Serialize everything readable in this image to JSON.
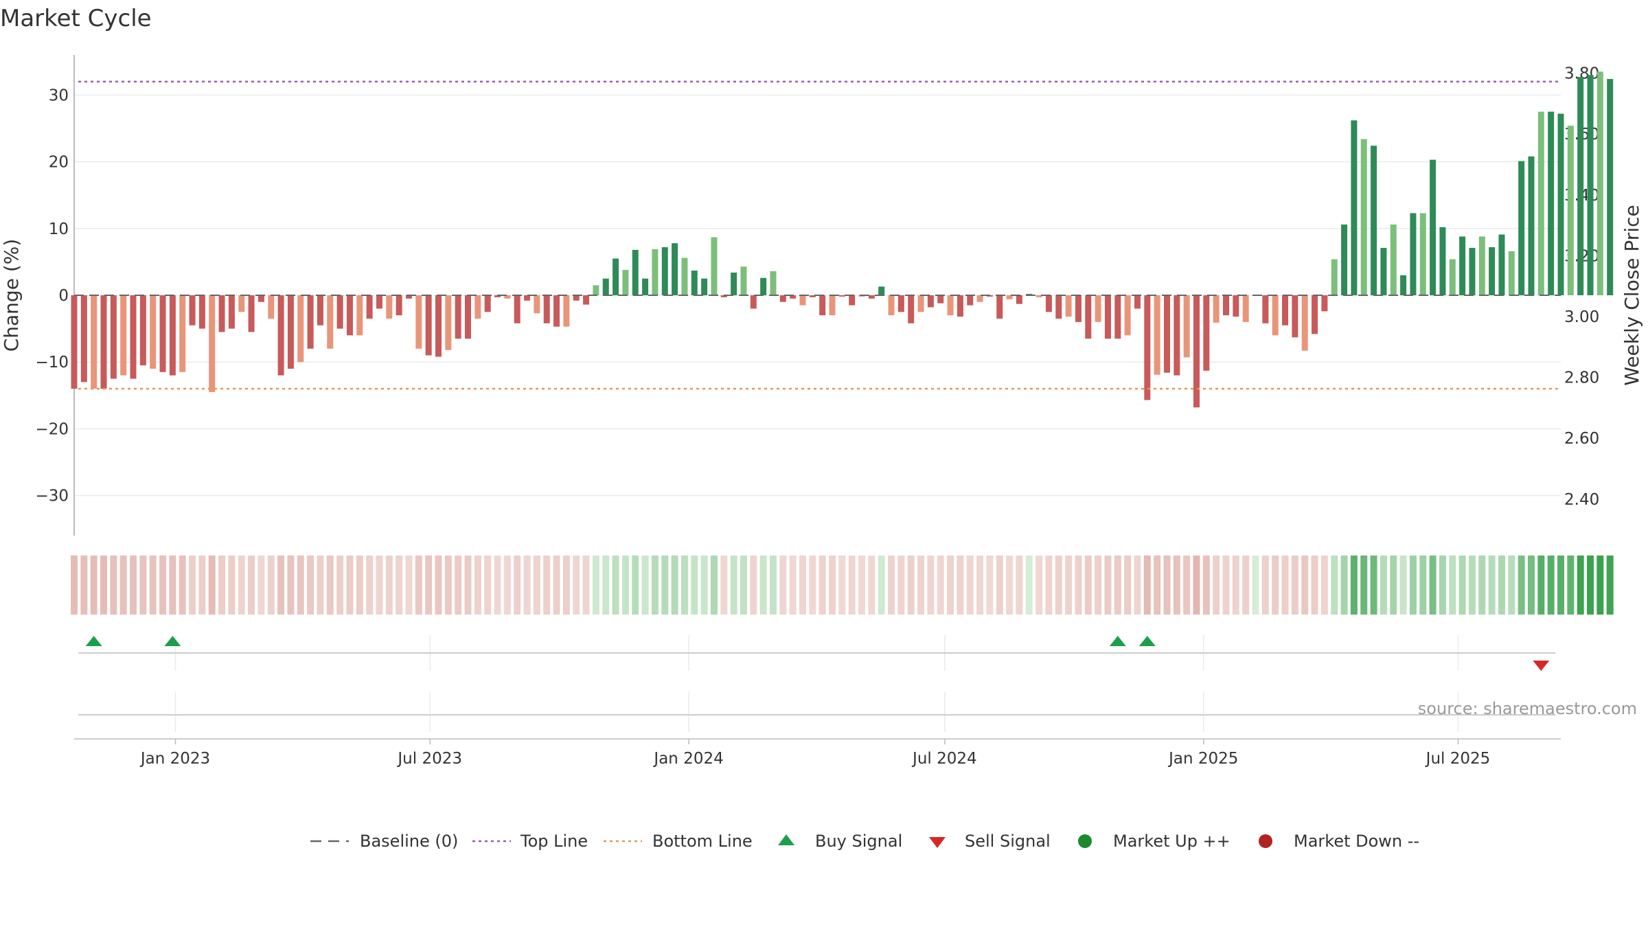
{
  "chart_data": {
    "type": "bar",
    "title": "Market Cycle",
    "ylabel": "Change (%)",
    "y2label": "Weekly Close Price",
    "ylim": [
      -36,
      36
    ],
    "y2lim": [
      2.28,
      3.86
    ],
    "yticks": [
      30,
      20,
      10,
      0,
      -10,
      -20,
      -30
    ],
    "ytick_labels": [
      "30",
      "20",
      "10",
      "0",
      "−10",
      "−20",
      "−30"
    ],
    "y2ticks": [
      3.8,
      3.6,
      3.4,
      3.2,
      3.0,
      2.8,
      2.6,
      2.4
    ],
    "y2tick_labels": [
      "3.80",
      "3.60",
      "3.40",
      "3.20",
      "3.00",
      "2.80",
      "2.60",
      "2.40"
    ],
    "top_line": 32,
    "bottom_line": -14,
    "x_start": "2022-10-21",
    "x_end": "2025-09-12",
    "date_ticks": [
      {
        "date": "2023-01-01",
        "label": "Jan 2023"
      },
      {
        "date": "2023-07-01",
        "label": "Jul 2023"
      },
      {
        "date": "2024-01-01",
        "label": "Jan 2024"
      },
      {
        "date": "2024-07-01",
        "label": "Jul 2024"
      },
      {
        "date": "2025-01-01",
        "label": "Jan 2025"
      },
      {
        "date": "2025-07-01",
        "label": "Jul 2025"
      }
    ],
    "weekly_change_start": "2022-10-21",
    "weekly_change": [
      -14,
      -13,
      -14,
      -14,
      -12.5,
      -12,
      -12.5,
      -10.5,
      -11,
      -11.5,
      -12,
      -11.5,
      -4.5,
      -5,
      -14.5,
      -5.5,
      -5,
      -2.5,
      -5.5,
      -1,
      -3.5,
      -12,
      -11,
      -10,
      -8,
      -4.5,
      -8,
      -5,
      -6,
      -6,
      -3.5,
      -2,
      -3.5,
      -3,
      -0.5,
      -8,
      -9,
      -9.2,
      -8.2,
      -6.5,
      -6.5,
      -3.5,
      -2.5,
      -0.3,
      -0.5,
      -4.2,
      -0.8,
      -2.7,
      -4.2,
      -4.7,
      -4.7,
      -0.8,
      -1.4,
      1.5,
      2.5,
      5.5,
      3.8,
      6.8,
      2.5,
      6.9,
      7.2,
      7.8,
      5.6,
      3.7,
      2.5,
      8.7,
      -0.3,
      3.4,
      4.3,
      -2,
      2.6,
      3.6,
      -1,
      -0.5,
      -1.5,
      -0.3,
      -3,
      -3,
      -0.2,
      -1.5,
      -0.2,
      -0.5,
      1.3,
      -3,
      -2.5,
      -4.2,
      -2.5,
      -1.8,
      -1.2,
      -3,
      -3.2,
      -1.5,
      -1,
      -0.2,
      -3.5,
      -0.6,
      -1.3,
      0.2,
      -0.3,
      -2.5,
      -3.5,
      -3.2,
      -4,
      -6.5,
      -4,
      -6.5,
      -6.5,
      -6,
      -2,
      -15.7,
      -11.9,
      -11.6,
      -12,
      -9.3,
      -16.8,
      -11.3,
      -4.1,
      -3,
      -3.2,
      -4,
      0,
      -4.2,
      -6,
      -4.5,
      -6.3,
      -8.3,
      -5.8,
      -2.4,
      5.4,
      10.6,
      26.2,
      23.4,
      22.4,
      7.1,
      10.6,
      3,
      12.3,
      12.3,
      20.3,
      10.2,
      5.4,
      8.8,
      7.1,
      8.8,
      7.2,
      9.1,
      6.6,
      20.1,
      20.8,
      27.5,
      27.5,
      27.2,
      25.4,
      32.7,
      33,
      33.5,
      32.4
    ],
    "signals": [
      {
        "date": "2022-11-04",
        "type": "Buy Signal"
      },
      {
        "date": "2022-12-30",
        "type": "Buy Signal"
      },
      {
        "date": "2024-11-01",
        "type": "Buy Signal"
      },
      {
        "date": "2024-11-22",
        "type": "Buy Signal"
      },
      {
        "date": "2025-08-29",
        "type": "Sell Signal"
      }
    ],
    "source": "source: sharemaestro.com",
    "legend": [
      {
        "label": "Baseline (0)",
        "marker": "dash"
      },
      {
        "label": "Top Line",
        "marker": "dot-purple"
      },
      {
        "label": "Bottom Line",
        "marker": "dot-orange"
      },
      {
        "label": "Buy Signal",
        "marker": "triangle-up"
      },
      {
        "label": "Sell Signal",
        "marker": "triangle-down"
      },
      {
        "label": "Market Up ++",
        "marker": "circle-green"
      },
      {
        "label": "Market Down --",
        "marker": "circle-red"
      }
    ],
    "legend_placement": "bottom",
    "colors": {
      "neg_dark": "#c85a5a",
      "neg_light": "#e9957a",
      "pos_dark": "#2e8b57",
      "pos_light": "#7cbf7a",
      "top_line": "#9b59b6",
      "bottom_line": "#e8965a",
      "baseline": "#666666",
      "buy": "#1e9e4a",
      "sell": "#d62728",
      "market_up": "#1e8a2e",
      "market_down": "#b22222",
      "grid": "#ebebeb",
      "axis": "#bbbbbb"
    }
  }
}
